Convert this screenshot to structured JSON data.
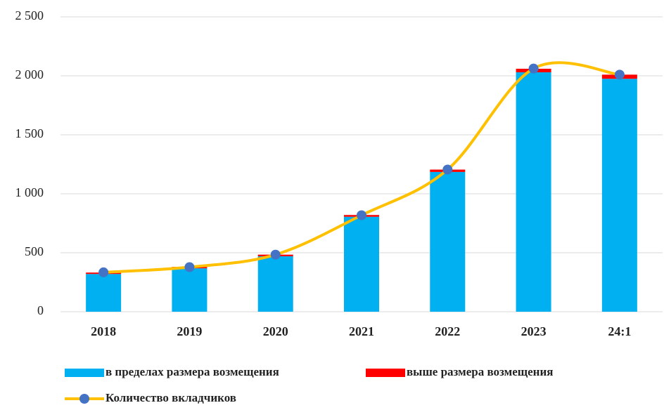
{
  "chart_data": {
    "type": "bar",
    "categories": [
      "2018",
      "2019",
      "2020",
      "2021",
      "2022",
      "2023",
      "24:1"
    ],
    "series": [
      {
        "name": "в пределах размера возмещения",
        "type": "bar",
        "color": "#00b0f0",
        "values": [
          320,
          368,
          470,
          805,
          1185,
          2030,
          1975
        ]
      },
      {
        "name": "выше размера возмещения",
        "type": "bar",
        "color": "#ff0000",
        "values": [
          12,
          12,
          14,
          15,
          20,
          30,
          35
        ]
      },
      {
        "name": "Количество вкладчиков",
        "type": "line",
        "color": "#ffc000",
        "marker_color": "#4472c4",
        "values": [
          334,
          378,
          484,
          818,
          1205,
          2062,
          2010
        ]
      }
    ],
    "stacked": true,
    "ylim": [
      0,
      2500
    ],
    "yticks": [
      0,
      500,
      {
        "value": 1000,
        "label": "1 000"
      },
      {
        "value": 1500,
        "label": "1 500"
      },
      {
        "value": 2000,
        "label": "2 000"
      },
      {
        "value": 2500,
        "label": "2 500"
      }
    ],
    "grid": true,
    "legend": "bottom"
  }
}
